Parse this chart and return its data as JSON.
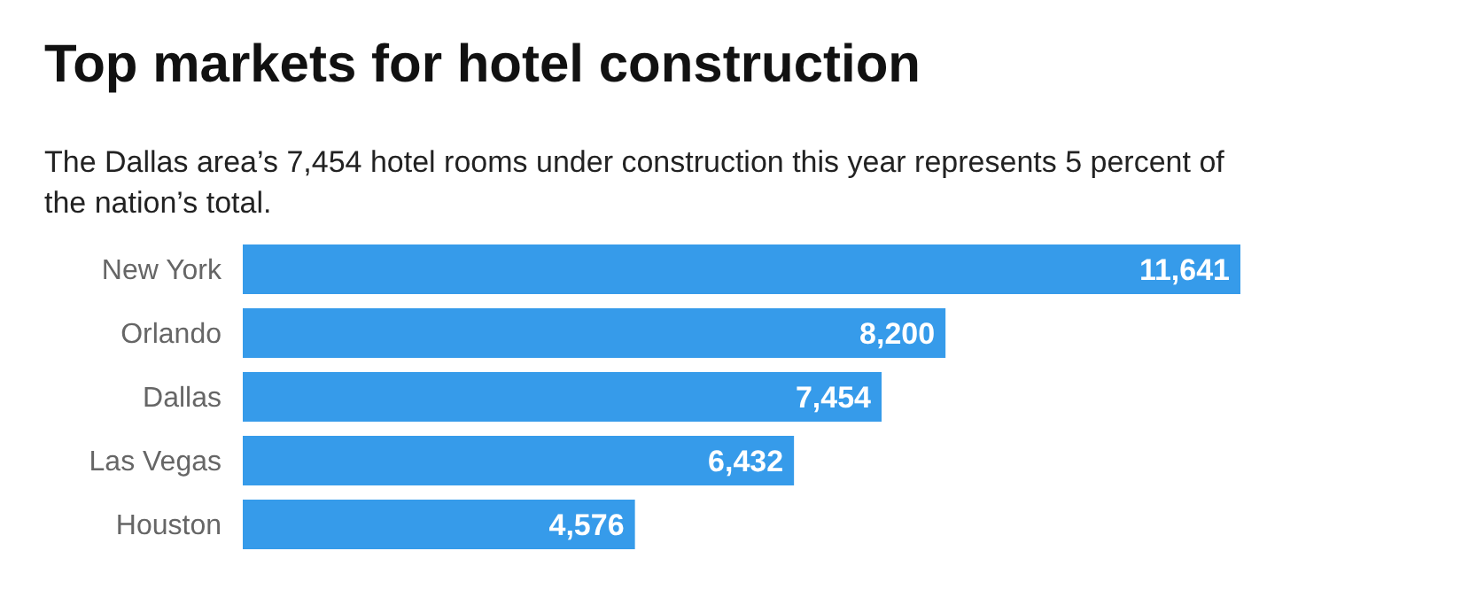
{
  "chart_data": {
    "type": "bar",
    "orientation": "horizontal",
    "title": "Top markets for hotel construction",
    "subtitle": "The Dallas area’s 7,454 hotel rooms under construction this year represents 5 percent of the nation’s total.",
    "categories": [
      "New York",
      "Orlando",
      "Dallas",
      "Las Vegas",
      "Houston"
    ],
    "values": [
      11641,
      8200,
      7454,
      6432,
      4576
    ],
    "value_labels": [
      "11,641",
      "8,200",
      "7,454",
      "6,432",
      "4,576"
    ],
    "color": "#369bea"
  }
}
